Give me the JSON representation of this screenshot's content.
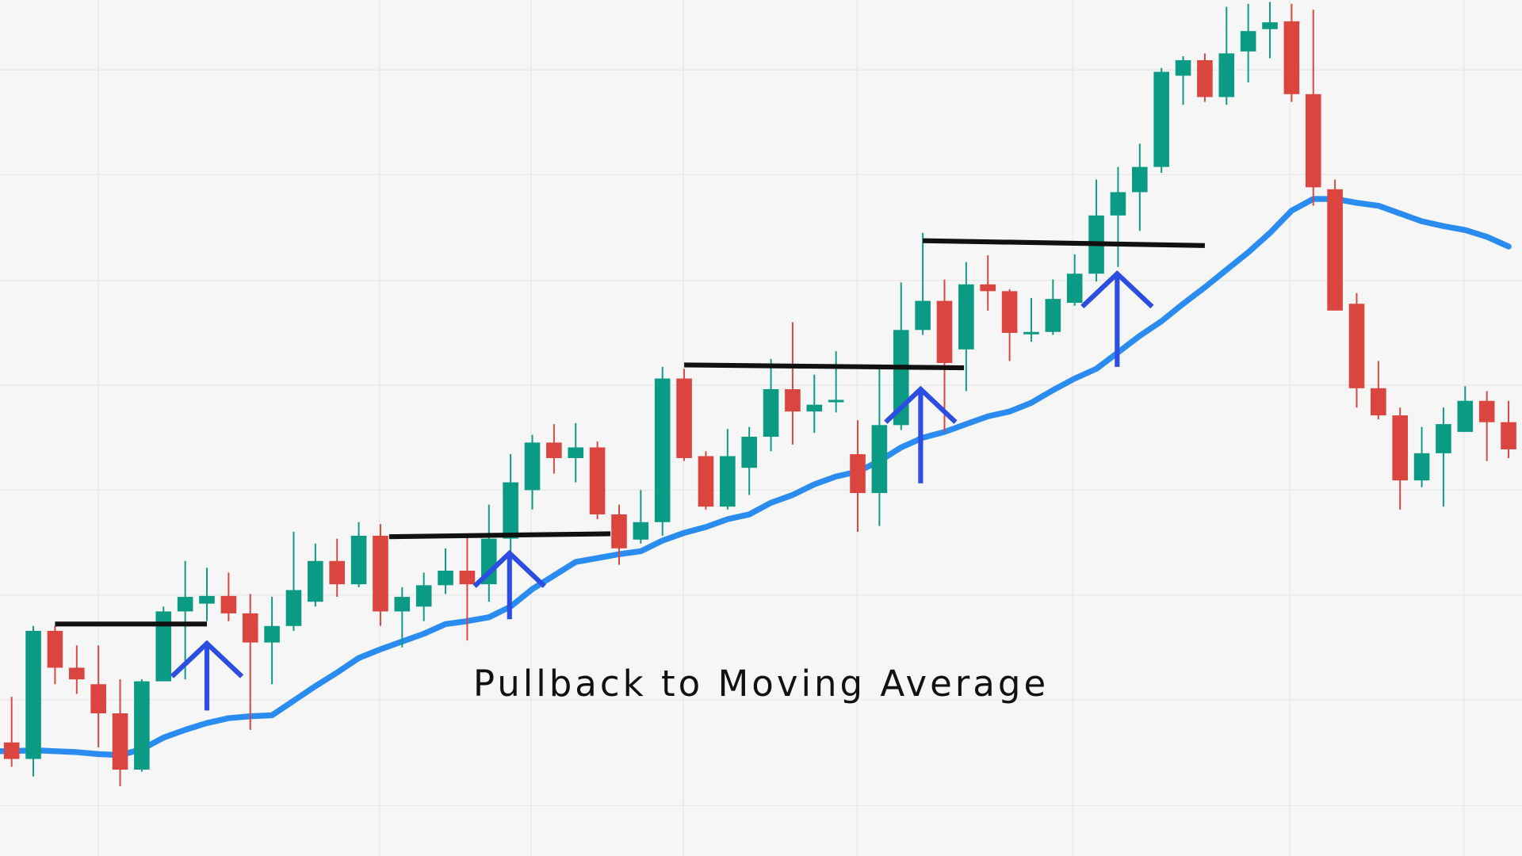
{
  "chart_data": {
    "type": "candlestick",
    "title": "Pullback to Moving Average",
    "xlabel": "",
    "ylabel": "",
    "grid": true,
    "ylim": [
      0,
      100
    ],
    "colors": {
      "up": "#0b9b85",
      "down": "#db4540",
      "moving_average": "#2a8bf0",
      "level_line": "#111111",
      "arrow": "#2b4de0",
      "background": "#f6f6f6",
      "grid": "#e9e9e9"
    },
    "candles": [
      [
        23.5,
        28.2,
        21.0,
        21.8
      ],
      [
        21.8,
        35.5,
        20.0,
        35.0
      ],
      [
        35.0,
        35.5,
        29.5,
        31.2
      ],
      [
        31.2,
        33.5,
        28.5,
        30.0
      ],
      [
        29.5,
        33.5,
        23.0,
        26.5
      ],
      [
        26.5,
        30.0,
        19.0,
        20.7
      ],
      [
        20.7,
        30.0,
        20.5,
        29.8
      ],
      [
        29.8,
        37.5,
        30.0,
        37.0
      ],
      [
        37.0,
        42.2,
        30.0,
        38.5
      ],
      [
        37.8,
        41.5,
        36.0,
        38.6
      ],
      [
        38.6,
        41.0,
        36.0,
        36.8
      ],
      [
        36.8,
        38.8,
        24.8,
        33.8
      ],
      [
        33.8,
        38.5,
        29.5,
        35.5
      ],
      [
        35.5,
        45.2,
        35.0,
        39.2
      ],
      [
        38.0,
        44.0,
        37.5,
        42.2
      ],
      [
        42.2,
        44.5,
        38.5,
        39.8
      ],
      [
        39.8,
        46.2,
        39.5,
        44.8
      ],
      [
        44.8,
        46.0,
        35.5,
        37.0
      ],
      [
        37.0,
        39.5,
        33.3,
        38.5
      ],
      [
        37.5,
        41.0,
        36.0,
        39.7
      ],
      [
        39.7,
        43.5,
        38.8,
        41.2
      ],
      [
        41.2,
        45.0,
        34.0,
        39.8
      ],
      [
        39.8,
        48.0,
        38.0,
        44.5
      ],
      [
        44.5,
        53.2,
        40.5,
        50.3
      ],
      [
        49.5,
        55.2,
        47.5,
        54.4
      ],
      [
        54.4,
        56.3,
        51.2,
        52.8
      ],
      [
        52.8,
        56.4,
        50.3,
        53.9
      ],
      [
        53.9,
        54.5,
        46.5,
        47.0
      ],
      [
        47.0,
        48.0,
        41.8,
        43.5
      ],
      [
        44.4,
        49.5,
        44.0,
        46.2
      ],
      [
        46.2,
        62.2,
        44.8,
        61.0
      ],
      [
        61.0,
        62.0,
        52.5,
        52.8
      ],
      [
        53.0,
        53.5,
        47.5,
        47.8
      ],
      [
        47.8,
        55.8,
        47.5,
        53.0
      ],
      [
        51.8,
        56.0,
        49.0,
        55.0
      ],
      [
        55.0,
        63.0,
        53.5,
        59.9
      ],
      [
        59.9,
        66.8,
        54.2,
        57.6
      ],
      [
        57.6,
        61.4,
        55.4,
        58.3
      ],
      [
        58.7,
        63.8,
        57.5,
        58.8
      ],
      [
        53.2,
        56.7,
        45.2,
        49.2
      ],
      [
        49.2,
        62.2,
        45.8,
        56.2
      ],
      [
        56.2,
        70.9,
        55.7,
        66.0
      ],
      [
        66.0,
        76.0,
        65.5,
        69.0
      ],
      [
        69.0,
        71.2,
        55.5,
        62.6
      ],
      [
        64.0,
        73.0,
        59.7,
        70.7
      ],
      [
        70.7,
        73.7,
        68.0,
        70.0
      ],
      [
        70.0,
        70.2,
        62.8,
        65.7
      ],
      [
        65.7,
        69.3,
        64.8,
        65.8
      ],
      [
        65.8,
        71.2,
        65.5,
        69.2
      ],
      [
        68.8,
        73.8,
        68.5,
        71.8
      ],
      [
        71.8,
        81.5,
        71.0,
        77.8
      ],
      [
        77.8,
        82.8,
        72.5,
        80.2
      ],
      [
        80.2,
        85.2,
        76.2,
        82.8
      ],
      [
        82.8,
        93.0,
        82.2,
        92.6
      ],
      [
        92.2,
        94.2,
        89.2,
        93.8
      ],
      [
        93.8,
        94.5,
        89.5,
        90.0
      ],
      [
        90.0,
        99.3,
        89.2,
        94.5
      ],
      [
        94.7,
        99.6,
        91.5,
        96.8
      ],
      [
        97.0,
        99.8,
        94.0,
        97.7
      ],
      [
        97.8,
        99.6,
        89.5,
        90.3
      ],
      [
        90.3,
        99.0,
        78.8,
        80.7
      ],
      [
        80.5,
        81.5,
        68.0,
        68.0
      ],
      [
        68.7,
        69.8,
        58.0,
        60.0
      ],
      [
        60.0,
        62.8,
        56.8,
        57.2
      ],
      [
        57.2,
        58.0,
        47.5,
        50.5
      ],
      [
        50.5,
        56.0,
        49.8,
        53.3
      ],
      [
        53.3,
        58.0,
        47.8,
        56.3
      ],
      [
        55.5,
        60.2,
        55.5,
        58.7
      ],
      [
        58.7,
        59.7,
        52.5,
        56.5
      ],
      [
        56.5,
        58.7,
        52.8,
        53.7
      ]
    ],
    "candle_format": [
      "open",
      "high",
      "low",
      "close"
    ],
    "moving_average": [
      22.6,
      22.7,
      22.6,
      22.5,
      22.3,
      22.2,
      22.8,
      24.0,
      24.8,
      25.5,
      26.0,
      26.2,
      26.3,
      27.8,
      29.3,
      30.7,
      32.2,
      33.1,
      33.9,
      34.7,
      35.7,
      36.0,
      36.4,
      37.5,
      39.3,
      40.7,
      42.1,
      42.5,
      42.9,
      43.2,
      44.3,
      45.1,
      45.7,
      46.5,
      47.0,
      48.2,
      49.0,
      50.1,
      50.9,
      51.4,
      52.5,
      53.9,
      54.9,
      55.5,
      56.3,
      57.1,
      57.6,
      58.5,
      59.8,
      61.0,
      62.0,
      63.7,
      65.4,
      66.9,
      68.7,
      70.4,
      72.2,
      74.0,
      76.0,
      78.3,
      79.5,
      79.5,
      79.1,
      78.8,
      78.0,
      77.2,
      76.7,
      76.3,
      75.6,
      74.6
    ],
    "resistance_levels": [
      {
        "from_candle": 2.0,
        "to_candle": 9.0,
        "price_start": 35.7,
        "price_end": 35.7
      },
      {
        "from_candle": 17.4,
        "to_candle": 27.6,
        "price_start": 44.7,
        "price_end": 45.0
      },
      {
        "from_candle": 31.0,
        "to_candle": 43.9,
        "price_start": 62.4,
        "price_end": 62.1
      },
      {
        "from_candle": 42.0,
        "to_candle": 55.0,
        "price_start": 75.2,
        "price_end": 74.7
      }
    ],
    "pullback_arrows": [
      {
        "candle": 9.0,
        "price_from": 26.8,
        "price_to": 33.7
      },
      {
        "candle": 22.95,
        "price_from": 36.2,
        "price_to": 43.0
      },
      {
        "candle": 41.9,
        "price_from": 50.2,
        "price_to": 59.9
      },
      {
        "candle": 50.96,
        "price_from": 62.2,
        "price_to": 71.8
      }
    ]
  }
}
